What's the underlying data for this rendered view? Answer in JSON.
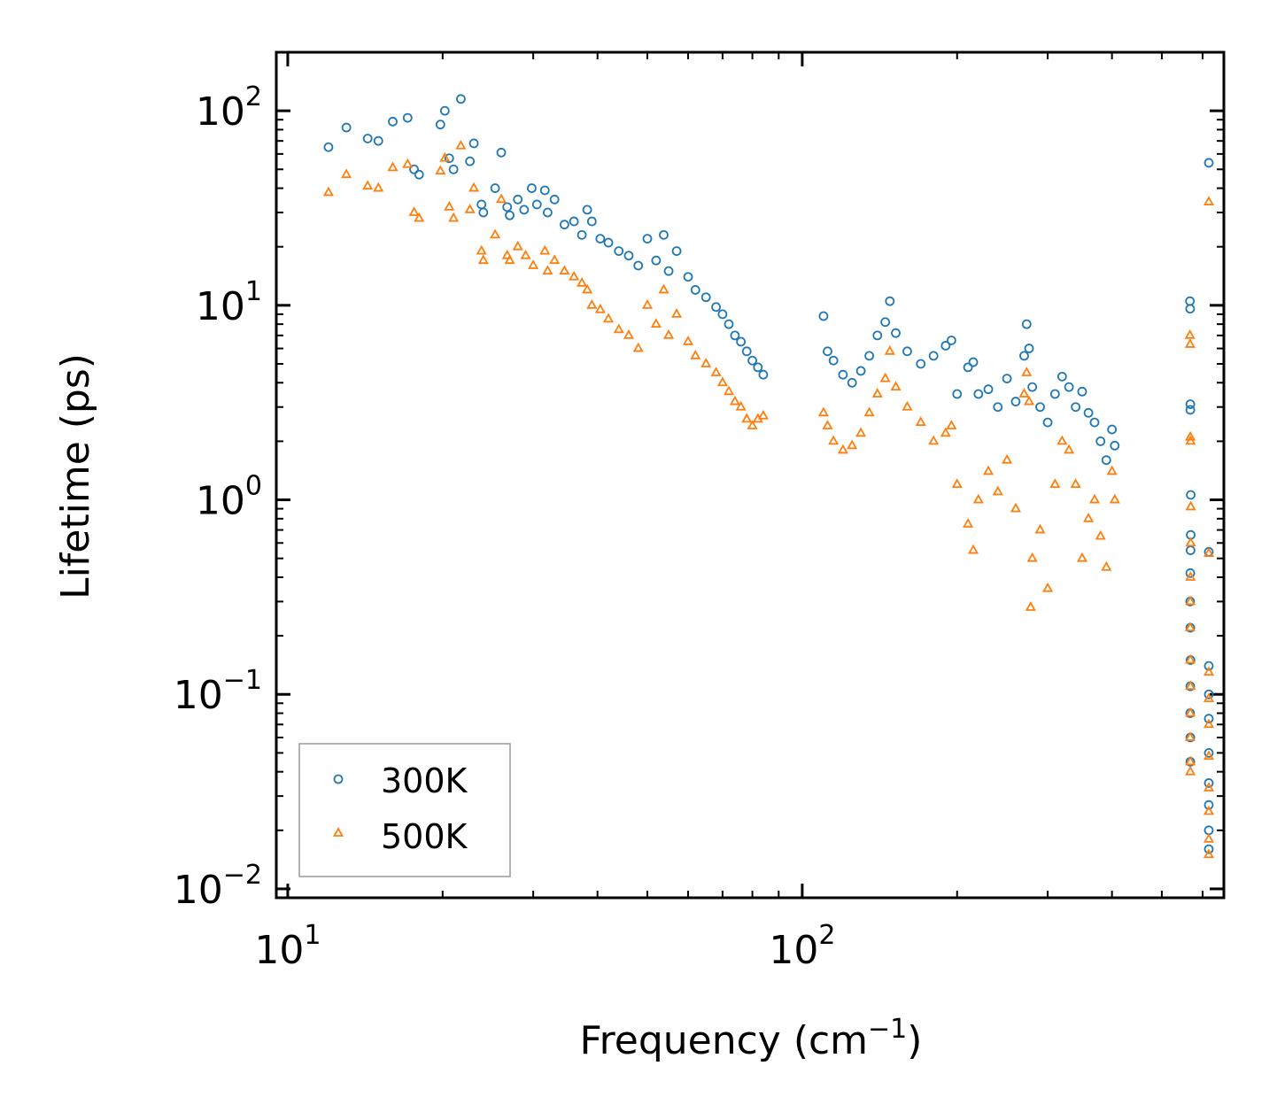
{
  "chart_data": {
    "type": "scatter",
    "title": "",
    "xlabel": "Frequency (cm⁻¹)",
    "xlabel_base": "Frequency (cm",
    "xlabel_sup": "−1",
    "xlabel_tail": ")",
    "ylabel": "Lifetime (ps)",
    "xscale": "log",
    "yscale": "log",
    "xlim": [
      9.5,
      660
    ],
    "ylim": [
      0.009,
      200
    ],
    "x_ticks": [
      {
        "value": 10,
        "base": "10",
        "exp": "1"
      },
      {
        "value": 100,
        "base": "10",
        "exp": "2"
      }
    ],
    "y_ticks": [
      {
        "value": 100,
        "base": "10",
        "exp": "2"
      },
      {
        "value": 10,
        "base": "10",
        "exp": "1"
      },
      {
        "value": 1,
        "base": "10",
        "exp": "0"
      },
      {
        "value": 0.1,
        "base": "10",
        "exp": "−1"
      },
      {
        "value": 0.01,
        "base": "10",
        "exp": "−2"
      }
    ],
    "legend_position": "lower-left",
    "series": [
      {
        "name": "300K",
        "marker": "circle",
        "color": "#1f77b4",
        "points": [
          [
            12.0,
            65
          ],
          [
            13.0,
            82
          ],
          [
            14.3,
            72
          ],
          [
            15.0,
            70
          ],
          [
            16.0,
            88
          ],
          [
            17.1,
            92
          ],
          [
            17.6,
            50
          ],
          [
            18.0,
            47
          ],
          [
            19.8,
            85
          ],
          [
            20.2,
            100
          ],
          [
            20.6,
            57
          ],
          [
            21.0,
            50
          ],
          [
            21.7,
            115
          ],
          [
            22.6,
            55
          ],
          [
            23.0,
            68
          ],
          [
            23.8,
            33
          ],
          [
            24.0,
            30
          ],
          [
            25.3,
            40
          ],
          [
            26.0,
            61
          ],
          [
            26.7,
            32
          ],
          [
            27.0,
            29
          ],
          [
            28.0,
            35
          ],
          [
            28.8,
            31
          ],
          [
            29.8,
            40
          ],
          [
            30.5,
            33
          ],
          [
            31.6,
            39
          ],
          [
            32.0,
            30
          ],
          [
            33.0,
            35
          ],
          [
            34.5,
            26
          ],
          [
            36.0,
            27
          ],
          [
            37.3,
            23
          ],
          [
            38.2,
            31
          ],
          [
            39.0,
            27
          ],
          [
            40.5,
            22
          ],
          [
            42.0,
            21
          ],
          [
            44.0,
            19
          ],
          [
            46.0,
            18
          ],
          [
            48.0,
            16
          ],
          [
            50.0,
            22
          ],
          [
            52.0,
            17
          ],
          [
            53.8,
            23
          ],
          [
            55.0,
            15
          ],
          [
            57.0,
            19
          ],
          [
            60.0,
            14
          ],
          [
            62.0,
            12
          ],
          [
            65.0,
            11
          ],
          [
            68.0,
            9.8
          ],
          [
            70.0,
            9.0
          ],
          [
            72.0,
            8.0
          ],
          [
            74.0,
            7.0
          ],
          [
            76.0,
            6.5
          ],
          [
            78.0,
            5.8
          ],
          [
            80.0,
            5.2
          ],
          [
            82.0,
            4.8
          ],
          [
            84.0,
            4.4
          ],
          [
            110.0,
            8.8
          ],
          [
            112.0,
            5.8
          ],
          [
            115.0,
            5.2
          ],
          [
            120.0,
            4.4
          ],
          [
            125.0,
            4.0
          ],
          [
            130.0,
            4.6
          ],
          [
            135.0,
            5.5
          ],
          [
            140.0,
            7.0
          ],
          [
            145.0,
            8.2
          ],
          [
            148.0,
            10.5
          ],
          [
            152.0,
            7.2
          ],
          [
            160.0,
            5.8
          ],
          [
            170.0,
            5.0
          ],
          [
            180.0,
            5.5
          ],
          [
            190.0,
            6.2
          ],
          [
            195.0,
            6.6
          ],
          [
            200.0,
            3.5
          ],
          [
            210.0,
            4.8
          ],
          [
            215.0,
            5.1
          ],
          [
            220.0,
            3.5
          ],
          [
            230.0,
            3.7
          ],
          [
            240.0,
            3.0
          ],
          [
            250.0,
            4.2
          ],
          [
            260.0,
            3.2
          ],
          [
            270.0,
            5.5
          ],
          [
            273.0,
            8.0
          ],
          [
            276.0,
            6.0
          ],
          [
            280.0,
            3.8
          ],
          [
            290.0,
            3.0
          ],
          [
            300.0,
            2.5
          ],
          [
            310.0,
            3.5
          ],
          [
            320.0,
            4.3
          ],
          [
            330.0,
            3.8
          ],
          [
            340.0,
            3.0
          ],
          [
            350.0,
            3.6
          ],
          [
            360.0,
            2.8
          ],
          [
            370.0,
            2.5
          ],
          [
            380.0,
            2.0
          ],
          [
            390.0,
            1.6
          ],
          [
            400.0,
            2.3
          ],
          [
            405.0,
            1.9
          ],
          [
            567.0,
            10.5
          ],
          [
            567.5,
            9.6
          ],
          [
            568.0,
            3.1
          ],
          [
            568.0,
            2.9
          ],
          [
            569.0,
            1.06
          ],
          [
            569.0,
            0.66
          ],
          [
            568.5,
            0.55
          ],
          [
            568.0,
            0.42
          ],
          [
            567.5,
            0.3
          ],
          [
            568.0,
            0.22
          ],
          [
            568.5,
            0.15
          ],
          [
            568.0,
            0.11
          ],
          [
            567.5,
            0.08
          ],
          [
            568.0,
            0.06
          ],
          [
            568.0,
            0.045
          ],
          [
            617.0,
            54
          ],
          [
            617.0,
            0.54
          ],
          [
            617.0,
            0.14
          ],
          [
            617.0,
            0.1
          ],
          [
            617.0,
            0.075
          ],
          [
            617.0,
            0.05
          ],
          [
            617.0,
            0.035
          ],
          [
            617.0,
            0.027
          ],
          [
            617.0,
            0.02
          ],
          [
            617.0,
            0.016
          ]
        ]
      },
      {
        "name": "500K",
        "marker": "triangle",
        "color": "#ff7f0e",
        "points": [
          [
            12.0,
            38
          ],
          [
            13.0,
            47
          ],
          [
            14.3,
            41
          ],
          [
            15.0,
            40
          ],
          [
            16.0,
            51
          ],
          [
            17.1,
            53
          ],
          [
            17.6,
            30
          ],
          [
            18.0,
            28
          ],
          [
            19.8,
            49
          ],
          [
            20.2,
            57
          ],
          [
            20.6,
            32
          ],
          [
            21.0,
            28
          ],
          [
            21.7,
            66
          ],
          [
            22.6,
            31
          ],
          [
            23.0,
            40
          ],
          [
            23.8,
            19
          ],
          [
            24.0,
            17
          ],
          [
            25.3,
            23
          ],
          [
            26.0,
            35
          ],
          [
            26.7,
            18
          ],
          [
            27.0,
            17
          ],
          [
            28.0,
            20
          ],
          [
            29.0,
            18
          ],
          [
            30.0,
            16
          ],
          [
            31.6,
            19
          ],
          [
            32.0,
            15
          ],
          [
            33.0,
            17
          ],
          [
            34.5,
            15
          ],
          [
            36.0,
            14
          ],
          [
            37.3,
            13
          ],
          [
            38.2,
            12
          ],
          [
            39.0,
            10
          ],
          [
            40.5,
            9.5
          ],
          [
            42.0,
            8.5
          ],
          [
            44.0,
            7.5
          ],
          [
            46.0,
            7.0
          ],
          [
            48.0,
            6.0
          ],
          [
            50.0,
            10
          ],
          [
            52.0,
            8.0
          ],
          [
            53.8,
            12
          ],
          [
            55.0,
            7.0
          ],
          [
            57.0,
            9.0
          ],
          [
            60.0,
            6.5
          ],
          [
            62.0,
            5.5
          ],
          [
            65.0,
            5.0
          ],
          [
            68.0,
            4.5
          ],
          [
            70.0,
            4.0
          ],
          [
            72.0,
            3.6
          ],
          [
            74.0,
            3.2
          ],
          [
            76.0,
            3.0
          ],
          [
            78.0,
            2.6
          ],
          [
            80.0,
            2.4
          ],
          [
            82.0,
            2.6
          ],
          [
            84.0,
            2.7
          ],
          [
            110.0,
            2.8
          ],
          [
            112.0,
            2.4
          ],
          [
            115.0,
            2.0
          ],
          [
            120.0,
            1.8
          ],
          [
            125.0,
            1.9
          ],
          [
            130.0,
            2.2
          ],
          [
            135.0,
            2.8
          ],
          [
            140.0,
            3.5
          ],
          [
            145.0,
            4.2
          ],
          [
            148.0,
            5.8
          ],
          [
            152.0,
            3.8
          ],
          [
            160.0,
            3.0
          ],
          [
            170.0,
            2.5
          ],
          [
            180.0,
            2.0
          ],
          [
            190.0,
            2.2
          ],
          [
            195.0,
            2.4
          ],
          [
            200.0,
            1.2
          ],
          [
            210.0,
            0.75
          ],
          [
            215.0,
            0.55
          ],
          [
            220.0,
            1.0
          ],
          [
            230.0,
            1.4
          ],
          [
            240.0,
            1.1
          ],
          [
            250.0,
            1.6
          ],
          [
            260.0,
            0.9
          ],
          [
            270.0,
            3.5
          ],
          [
            273.0,
            4.5
          ],
          [
            276.0,
            3.2
          ],
          [
            278.0,
            0.28
          ],
          [
            280.0,
            0.5
          ],
          [
            290.0,
            0.7
          ],
          [
            300.0,
            0.35
          ],
          [
            310.0,
            1.2
          ],
          [
            320.0,
            2.0
          ],
          [
            330.0,
            1.8
          ],
          [
            340.0,
            1.2
          ],
          [
            350.0,
            0.5
          ],
          [
            360.0,
            0.8
          ],
          [
            370.0,
            1.0
          ],
          [
            380.0,
            0.65
          ],
          [
            390.0,
            0.45
          ],
          [
            400.0,
            1.4
          ],
          [
            405.0,
            1.0
          ],
          [
            567.0,
            7.0
          ],
          [
            567.5,
            6.3
          ],
          [
            568.0,
            2.1
          ],
          [
            568.5,
            2.0
          ],
          [
            569.0,
            0.92
          ],
          [
            569.0,
            0.6
          ],
          [
            568.5,
            0.4
          ],
          [
            568.0,
            0.3
          ],
          [
            567.5,
            0.22
          ],
          [
            568.0,
            0.15
          ],
          [
            568.5,
            0.11
          ],
          [
            568.0,
            0.08
          ],
          [
            567.5,
            0.06
          ],
          [
            568.0,
            0.045
          ],
          [
            568.0,
            0.04
          ],
          [
            617.0,
            34
          ],
          [
            617.0,
            0.53
          ],
          [
            617.0,
            0.13
          ],
          [
            617.0,
            0.095
          ],
          [
            617.0,
            0.07
          ],
          [
            617.0,
            0.048
          ],
          [
            617.0,
            0.033
          ],
          [
            617.0,
            0.025
          ],
          [
            617.0,
            0.018
          ],
          [
            617.0,
            0.015
          ]
        ]
      }
    ]
  }
}
